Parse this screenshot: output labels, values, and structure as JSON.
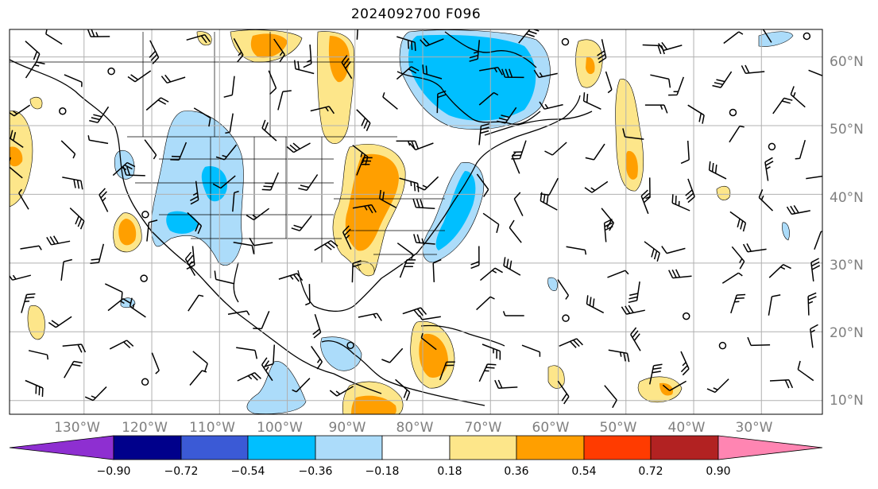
{
  "map": {
    "title": "2024092700 F096",
    "longitude_labels": [
      "130°W",
      "120°W",
      "110°W",
      "100°W",
      "90°W",
      "80°W",
      "70°W",
      "60°W",
      "50°W",
      "40°W",
      "30°W"
    ],
    "latitude_labels": [
      "60°N",
      "50°N",
      "40°N",
      "30°N",
      "20°N",
      "10°N"
    ],
    "extent": {
      "lon_min": -141,
      "lon_max": -21,
      "lat_min": 8,
      "lat_max": 64
    },
    "barbs_shown": true,
    "coastlines_and_borders": true,
    "grid": true
  },
  "colorbar": {
    "tick_labels": [
      "−0.90",
      "−0.72",
      "−0.54",
      "−0.36",
      "−0.18",
      "0.18",
      "0.36",
      "0.54",
      "0.72",
      "0.90"
    ],
    "colors": [
      "#8e2fd1",
      "#00008b",
      "#3b5ad6",
      "#00bfff",
      "#acdcfa",
      "#ffffff",
      "#fde68a",
      "#ff9f00",
      "#ff3b00",
      "#b22222",
      "#ff85b2"
    ],
    "extend": "both"
  }
}
